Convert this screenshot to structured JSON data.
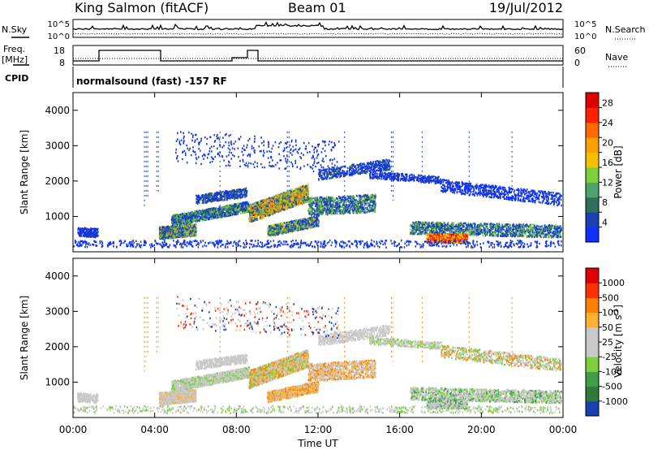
{
  "header": {
    "station": "King Salmon (fitACF)",
    "beam": "Beam 01",
    "date": "19/Jul/2012"
  },
  "summary": {
    "nsky_label": "N.Sky",
    "nsky_ticks": [
      "10^5",
      "10^0"
    ],
    "nsearch_label": "N.Search",
    "nsearch_ticks": [
      "10^5",
      "10^0"
    ],
    "freq_label_1": "Freq.",
    "freq_label_2": "[MHz]",
    "freq_ticks": [
      "18",
      "8"
    ],
    "nave_label": "Nave",
    "nave_ticks": [
      "60",
      "0"
    ],
    "cpid_label": "CPID",
    "cpid_text": "normalsound (fast) -157 RF"
  },
  "colors": {
    "power_scale": [
      "#1030ff",
      "#1a3fb0",
      "#2f6e5a",
      "#4fa36a",
      "#7ccf3c",
      "#f5c000",
      "#ffa000",
      "#ff6a00",
      "#ff2000",
      "#e00000"
    ],
    "velocity_scale": [
      "#1a3fb0",
      "#2d7a3a",
      "#3f9f45",
      "#7bd03c",
      "#c8c8c8",
      "#c8c8c8",
      "#ffb030",
      "#ff8000",
      "#ff3000",
      "#e00000"
    ]
  },
  "chart_data": [
    {
      "type": "heatmap",
      "name": "power",
      "ylabel": "Slant Range [km]",
      "yticks": [
        "1000",
        "2000",
        "3000",
        "4000"
      ],
      "ylim": [
        0,
        4500
      ],
      "colorbar_label": "Power [dB]",
      "colorbar_ticks": [
        "4",
        "8",
        "12",
        "16",
        "20",
        "24",
        "28"
      ],
      "colorbar_range": [
        0,
        30
      ]
    },
    {
      "type": "heatmap",
      "name": "velocity",
      "ylabel": "Slant Range [km]",
      "yticks": [
        "1000",
        "2000",
        "3000",
        "4000"
      ],
      "ylim": [
        0,
        4500
      ],
      "colorbar_label": "Velocity [m s",
      "colorbar_label_sup": "-1",
      "colorbar_label_end": "]",
      "colorbar_ticks": [
        "1000",
        "500",
        "100",
        "50",
        "25",
        "-25",
        "-100",
        "-500",
        "-1000"
      ]
    }
  ],
  "xaxis": {
    "label": "Time UT",
    "ticks": [
      "00:00",
      "04:00",
      "08:00",
      "12:00",
      "16:00",
      "20:00",
      "00:00"
    ],
    "range_hours": [
      0,
      24
    ]
  }
}
